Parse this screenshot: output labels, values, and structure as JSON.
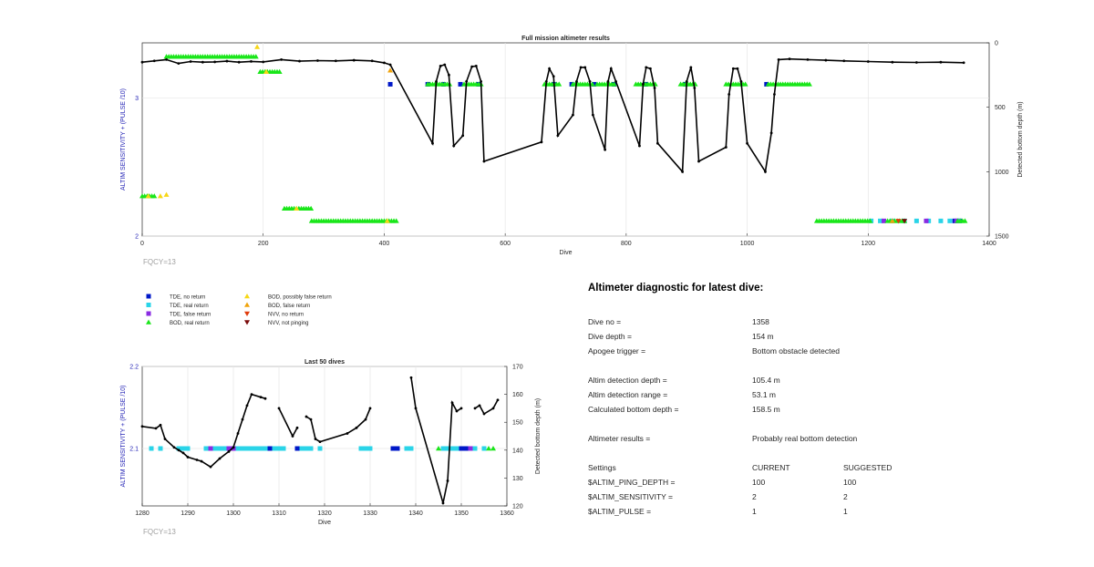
{
  "chart_data": [
    {
      "type": "scatter",
      "title": "Full mission altimeter results",
      "xlabel": "Dive",
      "ylabel_left": "ALTIM SENSITIVITY + (PULSE /10)",
      "ylabel_right": "Detected bottom depth (m)",
      "xlim": [
        0,
        1400
      ],
      "ylim_left": [
        2,
        3.4
      ],
      "ylim_right": [
        0,
        1500
      ],
      "xticks": [
        "0",
        "200",
        "400",
        "600",
        "800",
        "1000",
        "1200",
        "1400"
      ],
      "yticks_left": [
        "2",
        "3"
      ],
      "yticks_right": [
        "0",
        "500",
        "1000",
        "1500"
      ],
      "note": "FQCY=13",
      "bottom_depth": [
        [
          0,
          150
        ],
        [
          20,
          140
        ],
        [
          40,
          130
        ],
        [
          60,
          160
        ],
        [
          80,
          145
        ],
        [
          100,
          150
        ],
        [
          120,
          148
        ],
        [
          140,
          142
        ],
        [
          160,
          150
        ],
        [
          180,
          144
        ],
        [
          200,
          148
        ],
        [
          230,
          130
        ],
        [
          260,
          142
        ],
        [
          290,
          138
        ],
        [
          320,
          140
        ],
        [
          350,
          135
        ],
        [
          380,
          140
        ],
        [
          400,
          155
        ],
        [
          410,
          170
        ],
        [
          480,
          780
        ],
        [
          486,
          300
        ],
        [
          493,
          180
        ],
        [
          500,
          170
        ],
        [
          507,
          250
        ],
        [
          515,
          800
        ],
        [
          530,
          720
        ],
        [
          536,
          300
        ],
        [
          545,
          185
        ],
        [
          552,
          180
        ],
        [
          560,
          300
        ],
        [
          565,
          920
        ],
        [
          660,
          770
        ],
        [
          668,
          300
        ],
        [
          673,
          200
        ],
        [
          680,
          260
        ],
        [
          687,
          720
        ],
        [
          712,
          560
        ],
        [
          718,
          300
        ],
        [
          725,
          190
        ],
        [
          732,
          190
        ],
        [
          740,
          300
        ],
        [
          745,
          560
        ],
        [
          765,
          830
        ],
        [
          770,
          300
        ],
        [
          775,
          200
        ],
        [
          783,
          300
        ],
        [
          822,
          800
        ],
        [
          828,
          320
        ],
        [
          833,
          190
        ],
        [
          840,
          200
        ],
        [
          847,
          350
        ],
        [
          852,
          780
        ],
        [
          893,
          1000
        ],
        [
          900,
          300
        ],
        [
          907,
          190
        ],
        [
          913,
          350
        ],
        [
          920,
          920
        ],
        [
          965,
          810
        ],
        [
          970,
          400
        ],
        [
          977,
          200
        ],
        [
          984,
          200
        ],
        [
          990,
          300
        ],
        [
          1000,
          780
        ],
        [
          1030,
          1000
        ],
        [
          1040,
          700
        ],
        [
          1045,
          400
        ],
        [
          1052,
          130
        ],
        [
          1070,
          125
        ],
        [
          1100,
          130
        ],
        [
          1130,
          135
        ],
        [
          1160,
          140
        ],
        [
          1200,
          145
        ],
        [
          1240,
          150
        ],
        [
          1280,
          152
        ],
        [
          1320,
          150
        ],
        [
          1358,
          154
        ]
      ],
      "series": [
        {
          "name": "TDE, no return",
          "color": "#0018c8",
          "points": [
            [
              410,
              3.1
            ],
            [
              472,
              3.1
            ],
            [
              498,
              3.1
            ],
            [
              526,
              3.1
            ],
            [
              556,
              3.1
            ],
            [
              680,
              3.1
            ],
            [
              710,
              3.1
            ],
            [
              747,
              3.1
            ],
            [
              780,
              3.1
            ],
            [
              832,
              3.1
            ],
            [
              898,
              3.1
            ],
            [
              1032,
              3.1
            ],
            [
              1343,
              2.11
            ],
            [
              1351,
              2.11
            ]
          ]
        },
        {
          "name": "TDE, real return",
          "color": "#2ad4e8",
          "points": [
            [
              1205,
              2.11
            ],
            [
              1220,
              2.11
            ],
            [
              1240,
              2.11
            ],
            [
              1260,
              2.11
            ],
            [
              1280,
              2.11
            ],
            [
              1300,
              2.11
            ],
            [
              1320,
              2.11
            ],
            [
              1335,
              2.11
            ],
            [
              1350,
              2.11
            ]
          ]
        },
        {
          "name": "TDE, false return",
          "color": "#8a2be2",
          "points": [
            [
              1226,
              2.11
            ],
            [
              1296,
              2.11
            ],
            [
              1346,
              2.11
            ]
          ]
        },
        {
          "name": "BOD, real return",
          "color": "#19e619",
          "ranges": [
            [
              0,
              20,
              2.29
            ],
            [
              40,
              190,
              3.3
            ],
            [
              195,
              230,
              3.19
            ],
            [
              235,
              280,
              2.2
            ],
            [
              280,
              420,
              2.11
            ],
            [
              472,
              510,
              3.1
            ],
            [
              532,
              560,
              3.1
            ],
            [
              665,
              690,
              3.1
            ],
            [
              712,
              745,
              3.1
            ],
            [
              752,
              780,
              3.1
            ],
            [
              816,
              850,
              3.1
            ],
            [
              890,
              915,
              3.1
            ],
            [
              965,
              1000,
              3.1
            ],
            [
              1035,
              1105,
              3.1
            ],
            [
              1115,
              1205,
              2.11
            ],
            [
              1232,
              1260,
              2.11
            ],
            [
              1348,
              1360,
              2.11
            ]
          ]
        },
        {
          "name": "BOD, possibly false return",
          "color": "#f7d716",
          "points": [
            [
              10,
              2.29
            ],
            [
              30,
              2.29
            ],
            [
              40,
              2.3
            ],
            [
              190,
              3.37
            ],
            [
              205,
              3.19
            ],
            [
              255,
              2.2
            ],
            [
              405,
              2.11
            ]
          ]
        },
        {
          "name": "BOD, false return",
          "color": "#f0a30a",
          "points": [
            [
              410,
              3.2
            ],
            [
              1240,
              2.11
            ]
          ]
        },
        {
          "name": "NVV, no return",
          "color": "#e03a0a",
          "points": [
            [
              1250,
              2.11
            ]
          ]
        },
        {
          "name": "NVV, not pinging",
          "color": "#7a0a0a",
          "points": [
            [
              1260,
              2.11
            ]
          ]
        }
      ]
    },
    {
      "type": "scatter",
      "title": "Last 50 dives",
      "xlabel": "Dive",
      "ylabel_left": "ALTIM SENSITIVITY + (PULSE /10)",
      "ylabel_right": "Detected bottom depth (m)",
      "xlim": [
        1280,
        1360
      ],
      "ylim_left": [
        2.03,
        2.2
      ],
      "ylim_right": [
        170,
        120
      ],
      "xticks": [
        "1280",
        "1290",
        "1300",
        "1310",
        "1320",
        "1330",
        "1340",
        "1350",
        "1360"
      ],
      "yticks_left": [
        "2.1",
        "2.2"
      ],
      "yticks_right": [
        "120",
        "130",
        "140",
        "150",
        "160",
        "170"
      ],
      "note": "FQCY=13",
      "bottom_depth": [
        [
          1280,
          148.5
        ],
        [
          1283,
          147.8
        ],
        [
          1284,
          149
        ],
        [
          1285,
          144
        ],
        [
          1287,
          141
        ],
        [
          1288,
          140
        ],
        [
          1289,
          139
        ],
        [
          1290,
          137.5
        ],
        [
          1292,
          136.5
        ],
        [
          1293,
          136
        ],
        [
          1295,
          134
        ],
        [
          1297,
          137
        ],
        [
          1299,
          139.5
        ],
        [
          1300,
          141
        ],
        [
          1301,
          146
        ],
        [
          1302,
          151
        ],
        [
          1303,
          156
        ],
        [
          1304,
          160
        ],
        [
          1306,
          159
        ],
        [
          1307,
          158.5
        ],
        [
          null,
          null
        ],
        [
          1310,
          155
        ],
        [
          1313,
          145
        ],
        [
          1314,
          148
        ],
        [
          null,
          null
        ],
        [
          1316,
          152
        ],
        [
          1317,
          151
        ],
        [
          1318,
          144
        ],
        [
          1319,
          143
        ],
        [
          1325,
          146
        ],
        [
          1327,
          148
        ],
        [
          1329,
          151
        ],
        [
          1330,
          155
        ],
        [
          null,
          null
        ],
        [
          1339,
          166
        ],
        [
          1340,
          155
        ],
        [
          1346,
          121
        ],
        [
          1347,
          129
        ],
        [
          1348,
          157
        ],
        [
          1349,
          154
        ],
        [
          1350,
          155
        ],
        [
          null,
          null
        ],
        [
          1353,
          155
        ],
        [
          1354,
          156
        ],
        [
          1355,
          153
        ],
        [
          1357,
          155
        ],
        [
          1358,
          158
        ]
      ],
      "series": [
        {
          "name": "TDE, real return",
          "color": "#2ad4e8",
          "points": [
            [
              1282,
              2.1
            ],
            [
              1284,
              2.1
            ],
            [
              1288,
              2.1
            ],
            [
              1289,
              2.1
            ],
            [
              1290,
              2.1
            ],
            [
              1294,
              2.1
            ],
            [
              1296,
              2.1
            ],
            [
              1297,
              2.1
            ],
            [
              1298,
              2.1
            ],
            [
              1301,
              2.1
            ],
            [
              1302,
              2.1
            ],
            [
              1303,
              2.1
            ],
            [
              1304,
              2.1
            ],
            [
              1305,
              2.1
            ],
            [
              1306,
              2.1
            ],
            [
              1307,
              2.1
            ],
            [
              1309,
              2.1
            ],
            [
              1310,
              2.1
            ],
            [
              1311,
              2.1
            ],
            [
              1315,
              2.1
            ],
            [
              1316,
              2.1
            ],
            [
              1317,
              2.1
            ],
            [
              1319,
              2.1
            ],
            [
              1328,
              2.1
            ],
            [
              1329,
              2.1
            ],
            [
              1330,
              2.1
            ],
            [
              1338,
              2.1
            ],
            [
              1339,
              2.1
            ],
            [
              1346,
              2.1
            ],
            [
              1347,
              2.1
            ],
            [
              1348,
              2.1
            ],
            [
              1349,
              2.1
            ],
            [
              1353,
              2.1
            ],
            [
              1355,
              2.1
            ]
          ]
        },
        {
          "name": "TDE, no return",
          "color": "#0018c8",
          "points": [
            [
              1308,
              2.1
            ],
            [
              1314,
              2.1
            ],
            [
              1335,
              2.1
            ],
            [
              1336,
              2.1
            ],
            [
              1350,
              2.1
            ],
            [
              1351,
              2.1
            ]
          ]
        },
        {
          "name": "TDE, false return",
          "color": "#8a2be2",
          "points": [
            [
              1295,
              2.1
            ],
            [
              1299,
              2.1
            ],
            [
              1300,
              2.1
            ],
            [
              1352,
              2.1
            ]
          ]
        },
        {
          "name": "BOD, real return",
          "color": "#19e619",
          "points": [
            [
              1345,
              2.1
            ],
            [
              1356,
              2.1
            ],
            [
              1357,
              2.1
            ]
          ]
        }
      ]
    }
  ],
  "legend": [
    {
      "label": "TDE, no return",
      "color": "#0018c8",
      "shape": "square"
    },
    {
      "label": "TDE, real return",
      "color": "#2ad4e8",
      "shape": "square"
    },
    {
      "label": "TDE, false return",
      "color": "#8a2be2",
      "shape": "square"
    },
    {
      "label": "BOD, real return",
      "color": "#19e619",
      "shape": "tri-up"
    },
    {
      "label": "BOD, possibly false return",
      "color": "#f7d716",
      "shape": "tri-up"
    },
    {
      "label": "BOD, false return",
      "color": "#f0a30a",
      "shape": "tri-up"
    },
    {
      "label": "NVV, no return",
      "color": "#e03a0a",
      "shape": "tri-down"
    },
    {
      "label": "NVV, not pinging",
      "color": "#7a0a0a",
      "shape": "tri-down"
    }
  ],
  "diagnostic": {
    "title": "Altimeter diagnostic for latest dive:",
    "rows": [
      {
        "label": "Dive no =",
        "value": "1358"
      },
      {
        "label": "Dive depth =",
        "value": "154 m"
      },
      {
        "label": "Apogee trigger =",
        "value": "Bottom obstacle detected"
      },
      {
        "label": "Altim detection depth =",
        "value": "105.4 m"
      },
      {
        "label": "Altim detection range =",
        "value": "53.1 m"
      },
      {
        "label": "Calculated bottom depth =",
        "value": "158.5 m"
      },
      {
        "label": "Altimeter results =",
        "value": "Probably real bottom detection"
      }
    ],
    "settings_header": {
      "label": "Settings",
      "current": "CURRENT",
      "suggested": "SUGGESTED"
    },
    "settings": [
      {
        "label": "$ALTIM_PING_DEPTH =",
        "current": "100",
        "suggested": "100"
      },
      {
        "label": "$ALTIM_SENSITIVITY =",
        "current": "2",
        "suggested": "2"
      },
      {
        "label": "$ALTIM_PULSE =",
        "current": "1",
        "suggested": "1"
      }
    ]
  }
}
